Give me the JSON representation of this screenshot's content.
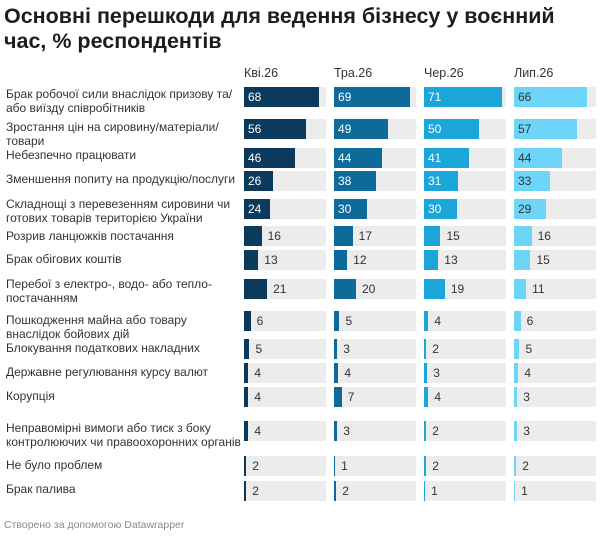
{
  "title": "Основні перешкоди для ведення бізнесу у воєнний час, % респондентів",
  "footer": "Створено за допомогою Datawrapper",
  "colors": {
    "col0": "#0b3a5c",
    "col1": "#0e6a9a",
    "col2": "#1ba6d9",
    "col3": "#6dd5f7",
    "track": "#ececec"
  },
  "chart_data": {
    "type": "bar",
    "title": "Основні перешкоди для ведення бізнесу у воєнний час, % респондентів",
    "xlim": [
      0,
      100
    ],
    "categories": [
      "Брак робочої сили внаслідок призову та/ або виїзду співробітників",
      "Зростання цін на сировину/матеріали/ товари",
      "Небезпечно працювати",
      "Зменшення попиту на продукцію/послуги",
      "Складнощі з перевезенням сировини чи готових товарів територією України",
      "Розрив ланцюжків постачання",
      "Брак обігових коштів",
      "Перебої з електро-, водо- або тепло- постачанням",
      "Пошкодження майна або товару внаслідок бойових дій",
      "Блокування податкових накладних",
      "Державне регулювання курсу валют",
      "Корупція",
      "Неправомірні вимоги або тиск з боку контролюючих чи правоохоронних органів",
      "Не було проблем",
      "Брак палива"
    ],
    "series": [
      {
        "name": "Кві.26",
        "values": [
          68,
          56,
          46,
          26,
          24,
          16,
          13,
          21,
          6,
          5,
          4,
          4,
          4,
          2,
          2
        ]
      },
      {
        "name": "Тра.26",
        "values": [
          69,
          49,
          44,
          38,
          30,
          17,
          12,
          20,
          5,
          3,
          4,
          7,
          3,
          1,
          2
        ]
      },
      {
        "name": "Чер.26",
        "values": [
          71,
          50,
          41,
          31,
          30,
          15,
          13,
          19,
          4,
          2,
          3,
          4,
          2,
          2,
          1
        ]
      },
      {
        "name": "Лип.26",
        "values": [
          66,
          57,
          44,
          33,
          29,
          16,
          15,
          11,
          6,
          5,
          4,
          3,
          3,
          2,
          1
        ]
      }
    ]
  }
}
